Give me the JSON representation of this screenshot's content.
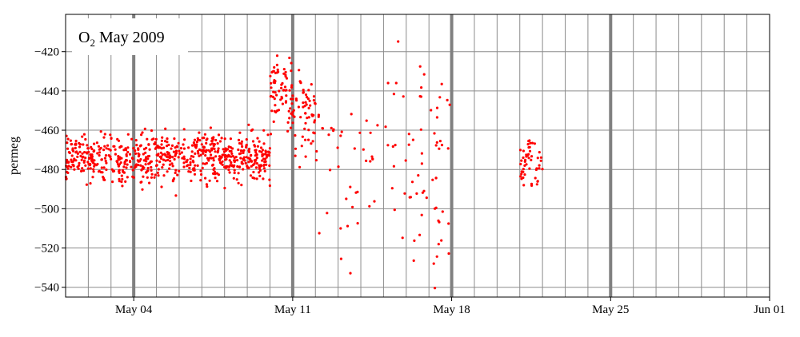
{
  "chart_data": {
    "type": "scatter",
    "title_main": "O",
    "title_sub": "2",
    "title_rest": " May 2009",
    "ylabel": "permeg",
    "xlabel": "",
    "xlim": [
      "2009-05-01",
      "2009-06-01"
    ],
    "ylim": [
      -545,
      -401
    ],
    "grid": true,
    "x_ticks": [
      {
        "date": "2009-05-04",
        "label": "May 04"
      },
      {
        "date": "2009-05-11",
        "label": "May 11"
      },
      {
        "date": "2009-05-18",
        "label": "May 18"
      },
      {
        "date": "2009-05-25",
        "label": "May 25"
      },
      {
        "date": "2009-06-01",
        "label": "Jun 01"
      }
    ],
    "y_ticks": [
      -540,
      -520,
      -500,
      -480,
      -460,
      -440,
      -420
    ],
    "daily_gridlines": true,
    "highlight_dates": [
      "2009-05-04",
      "2009-05-11",
      "2009-05-18",
      "2009-05-25"
    ],
    "colors": {
      "points": "#ff0000",
      "grid": "#8c8c8c",
      "highlight": "#808080",
      "axis": "#000000"
    },
    "series": [
      {
        "clusters": [
          {
            "start": "2009-05-01",
            "end": "2009-05-10",
            "n": 700,
            "center": -474,
            "spread": 9
          },
          {
            "start": "2009-05-10",
            "end": "2009-05-11",
            "n": 70,
            "center": -440,
            "spread": 14
          },
          {
            "start": "2009-05-11",
            "end": "2009-05-12",
            "n": 60,
            "center": -450,
            "spread": 16
          },
          {
            "start": "2009-05-12",
            "end": "2009-05-17",
            "n": 80,
            "center": -475,
            "spread": 38
          },
          {
            "start": "2009-05-17",
            "end": "2009-05-18",
            "n": 30,
            "center": -480,
            "spread": 40
          },
          {
            "start": "2009-05-21",
            "end": "2009-05-22",
            "n": 50,
            "center": -475,
            "spread": 9
          }
        ]
      }
    ]
  }
}
